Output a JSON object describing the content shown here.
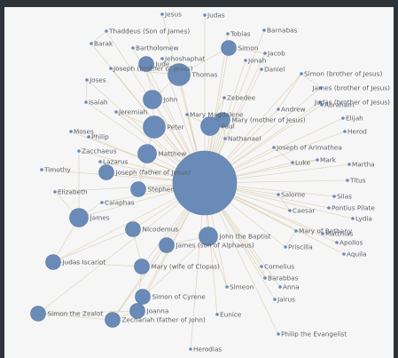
{
  "graph": {
    "node_color": "#6a8bb7",
    "edge_color": "#d9c9a8",
    "hub": {
      "name": "",
      "weight": 10
    },
    "nodes": [
      {
        "id": "n1",
        "label": "Jesus",
        "weight": 0
      },
      {
        "id": "n2",
        "label": "Judas",
        "weight": 0
      },
      {
        "id": "n3",
        "label": "Thaddeus (Son of James)",
        "weight": 0
      },
      {
        "id": "n4",
        "label": "Barak",
        "weight": 0
      },
      {
        "id": "n5",
        "label": "Bartholomew",
        "weight": 0
      },
      {
        "id": "n6",
        "label": "Tobias",
        "weight": 0
      },
      {
        "id": "n7",
        "label": "Barnabas",
        "weight": 0
      },
      {
        "id": "n8",
        "label": "Thomas",
        "weight": 3
      },
      {
        "id": "n9",
        "label": "Simon",
        "weight": 1
      },
      {
        "id": "n10",
        "label": "Jacob",
        "weight": 0
      },
      {
        "id": "n11",
        "label": "Jehoshaphat",
        "weight": 0
      },
      {
        "id": "n12",
        "label": "Jonah",
        "weight": 0
      },
      {
        "id": "n13",
        "label": "Joseph (brother of Jesus)",
        "weight": 0
      },
      {
        "id": "n14",
        "label": "Simon (brother of Jesus)",
        "weight": 0
      },
      {
        "id": "n15",
        "label": "James (brother of Jesus)",
        "weight": 0
      },
      {
        "id": "n16",
        "label": "Judas (brother of Jesus)",
        "weight": 0
      },
      {
        "id": "n17",
        "label": "Joses",
        "weight": 0
      },
      {
        "id": "n18",
        "label": "Jude",
        "weight": 1
      },
      {
        "id": "n19",
        "label": "John",
        "weight": 2
      },
      {
        "id": "n20",
        "label": "Daniel",
        "weight": 0
      },
      {
        "id": "n21",
        "label": "Zebedee",
        "weight": 0
      },
      {
        "id": "n22",
        "label": "Isaiah",
        "weight": 0
      },
      {
        "id": "n23",
        "label": "Abraham",
        "weight": 0
      },
      {
        "id": "n24",
        "label": "Andrew",
        "weight": 0
      },
      {
        "id": "n25",
        "label": "Jeremiah",
        "weight": 0
      },
      {
        "id": "n26",
        "label": "Mary Magdalene",
        "weight": 0
      },
      {
        "id": "n27",
        "label": "Peter",
        "weight": 3
      },
      {
        "id": "n28",
        "label": "Elijah",
        "weight": 0
      },
      {
        "id": "n29",
        "label": "Mary (mother of Jesus)",
        "weight": 1
      },
      {
        "id": "n30",
        "label": "Moses",
        "weight": 0
      },
      {
        "id": "n31",
        "label": "Paul",
        "weight": 2
      },
      {
        "id": "n32",
        "label": "Herod",
        "weight": 0
      },
      {
        "id": "n33",
        "label": "Philip",
        "weight": 0
      },
      {
        "id": "n34",
        "label": "Nathanael",
        "weight": 0
      },
      {
        "id": "n35",
        "label": "Joseph of Arimathea",
        "weight": 0
      },
      {
        "id": "n36",
        "label": "Zacchaeus",
        "weight": 0
      },
      {
        "id": "n37",
        "label": "Matthew",
        "weight": 2
      },
      {
        "id": "n38",
        "label": "Mark",
        "weight": 0
      },
      {
        "id": "n39",
        "label": "Lazarus",
        "weight": 0
      },
      {
        "id": "n40",
        "label": "Luke",
        "weight": 0
      },
      {
        "id": "n41",
        "label": "Martha",
        "weight": 0
      },
      {
        "id": "n42",
        "label": "Timothy",
        "weight": 0
      },
      {
        "id": "n43",
        "label": "Joseph (father of Jesus)",
        "weight": 1
      },
      {
        "id": "n44",
        "label": "Titus",
        "weight": 0
      },
      {
        "id": "n45",
        "label": "Salome",
        "weight": 0
      },
      {
        "id": "n46",
        "label": "Stephen",
        "weight": 1
      },
      {
        "id": "n47",
        "label": "Elizabeth",
        "weight": 0
      },
      {
        "id": "n48",
        "label": "James",
        "weight": 2
      },
      {
        "id": "n49",
        "label": "Caiaphas",
        "weight": 0
      },
      {
        "id": "n50",
        "label": "Silas",
        "weight": 0
      },
      {
        "id": "n51",
        "label": "Pontius Pilate",
        "weight": 0
      },
      {
        "id": "n52",
        "label": "Caesar",
        "weight": 0
      },
      {
        "id": "n53",
        "label": "Nicodemus",
        "weight": 1
      },
      {
        "id": "n54",
        "label": "Lydia",
        "weight": 0
      },
      {
        "id": "n55",
        "label": "John the Baptist",
        "weight": 2
      },
      {
        "id": "n56",
        "label": "Mary of Bethany",
        "weight": 0
      },
      {
        "id": "n57",
        "label": "James (son of Alphaeus)",
        "weight": 1
      },
      {
        "id": "n58",
        "label": "Judas Iscariot",
        "weight": 1
      },
      {
        "id": "n59",
        "label": "Matthias",
        "weight": 0
      },
      {
        "id": "n60",
        "label": "Apollos",
        "weight": 0
      },
      {
        "id": "n61",
        "label": "Aquila",
        "weight": 0
      },
      {
        "id": "n62",
        "label": "Priscilla",
        "weight": 0
      },
      {
        "id": "n63",
        "label": "Cornelius",
        "weight": 0
      },
      {
        "id": "n64",
        "label": "Barabbas",
        "weight": 0
      },
      {
        "id": "n65",
        "label": "Mary (wife of Clopas)",
        "weight": 1
      },
      {
        "id": "n66",
        "label": "Anna",
        "weight": 0
      },
      {
        "id": "n67",
        "label": "Jairus",
        "weight": 0
      },
      {
        "id": "n68",
        "label": "Simon of Cyrene",
        "weight": 1
      },
      {
        "id": "n69",
        "label": "Simon the Zealot",
        "weight": 1
      },
      {
        "id": "n70",
        "label": "Joanna",
        "weight": 1
      },
      {
        "id": "n71",
        "label": "Philip the Evangelist",
        "weight": 0
      },
      {
        "id": "n72",
        "label": "Herodias",
        "weight": 0
      },
      {
        "id": "n73",
        "label": "Zechariah (father of John)",
        "weight": 1
      },
      {
        "id": "n74",
        "label": "Simeon",
        "weight": 0
      },
      {
        "id": "n75",
        "label": "Eunice",
        "weight": 0
      }
    ]
  }
}
